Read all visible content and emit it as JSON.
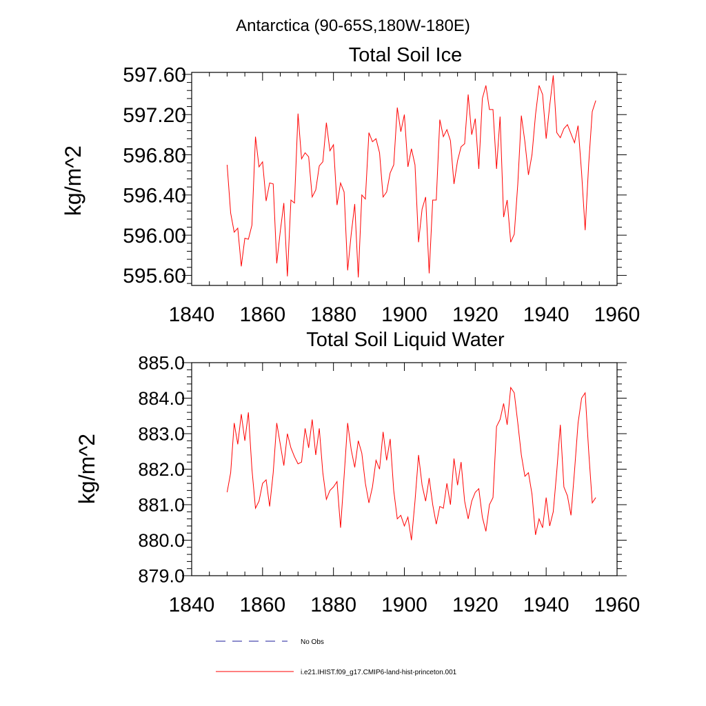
{
  "figure": {
    "title": "Antarctica (90-65S,180W-180E)"
  },
  "chart_data": [
    {
      "type": "line",
      "title": "Total Soil Ice",
      "xlabel": "",
      "ylabel": "kg/m^2",
      "xlim": [
        1840,
        1960
      ],
      "ylim": [
        595.5,
        597.62
      ],
      "xticks": [
        "1840",
        "1860",
        "1880",
        "1900",
        "1920",
        "1940",
        "1960"
      ],
      "yticks": [
        "595.60",
        "596.00",
        "596.40",
        "596.80",
        "597.20",
        "597.60"
      ],
      "grid": false,
      "series": [
        {
          "name": "i.e21.IHIST.f09_g17.CMIP6-land-hist-princeton.001",
          "color": "#ff0000",
          "x_start": 1850,
          "values": [
            596.7,
            596.22,
            596.03,
            596.07,
            595.69,
            595.97,
            595.96,
            596.1,
            596.98,
            596.68,
            596.73,
            596.34,
            596.52,
            596.51,
            595.72,
            596.04,
            596.32,
            595.59,
            596.35,
            596.32,
            597.21,
            596.76,
            596.82,
            596.78,
            596.38,
            596.45,
            596.69,
            596.73,
            597.12,
            596.84,
            596.9,
            596.3,
            596.52,
            596.43,
            595.65,
            596.01,
            596.31,
            595.58,
            596.4,
            596.36,
            597.02,
            596.93,
            596.96,
            596.82,
            596.38,
            596.43,
            596.62,
            596.7,
            597.27,
            597.03,
            597.2,
            596.68,
            596.86,
            596.7,
            595.93,
            596.26,
            596.38,
            595.62,
            596.35,
            596.35,
            597.15,
            596.98,
            597.05,
            596.94,
            596.51,
            596.74,
            596.88,
            596.91,
            597.4,
            597.0,
            597.16,
            596.66,
            597.36,
            597.49,
            597.25,
            597.25,
            596.66,
            597.18,
            596.18,
            596.35,
            595.93,
            596.01,
            596.51,
            597.19,
            596.93,
            596.6,
            596.8,
            597.2,
            597.49,
            597.4,
            596.96,
            597.29,
            597.59,
            597.02,
            596.97,
            597.06,
            597.1,
            597.01,
            596.92,
            597.09,
            596.62,
            596.05,
            596.71,
            597.23,
            597.34
          ]
        }
      ]
    },
    {
      "type": "line",
      "title": "Total Soil Liquid Water",
      "xlabel": "",
      "ylabel": "kg/m^2",
      "xlim": [
        1840,
        1960
      ],
      "ylim": [
        879.0,
        885.0
      ],
      "xticks": [
        "1840",
        "1860",
        "1880",
        "1900",
        "1920",
        "1940",
        "1960"
      ],
      "yticks": [
        "879.0",
        "880.0",
        "881.0",
        "882.0",
        "883.0",
        "884.0",
        "885.0"
      ],
      "grid": false,
      "series": [
        {
          "name": "i.e21.IHIST.f09_g17.CMIP6-land-hist-princeton.001",
          "color": "#ff0000",
          "x_start": 1850,
          "values": [
            881.35,
            881.9,
            883.3,
            882.7,
            883.55,
            882.8,
            883.6,
            882.0,
            880.9,
            881.1,
            881.6,
            881.7,
            880.95,
            881.9,
            883.3,
            882.7,
            882.1,
            883.0,
            882.6,
            882.35,
            882.15,
            882.2,
            883.15,
            882.6,
            883.4,
            882.4,
            883.15,
            881.9,
            881.15,
            881.4,
            881.5,
            881.65,
            880.35,
            881.8,
            883.3,
            882.55,
            882.05,
            882.8,
            882.45,
            881.6,
            881.05,
            881.5,
            882.25,
            882.0,
            883.05,
            882.25,
            882.85,
            881.4,
            880.6,
            880.7,
            880.4,
            880.65,
            880.0,
            881.1,
            882.4,
            881.55,
            881.1,
            881.75,
            881.0,
            880.45,
            880.95,
            880.9,
            881.6,
            881.0,
            882.3,
            881.55,
            882.2,
            881.1,
            880.6,
            881.1,
            881.35,
            881.45,
            880.65,
            880.25,
            881.0,
            881.2,
            883.2,
            883.4,
            883.85,
            883.25,
            884.3,
            884.15,
            883.3,
            882.4,
            881.8,
            881.9,
            881.3,
            880.15,
            880.6,
            880.35,
            881.2,
            880.4,
            880.8,
            881.95,
            883.25,
            881.5,
            881.25,
            880.7,
            881.95,
            883.3,
            884.0,
            884.15,
            882.5,
            881.05,
            881.2
          ]
        }
      ]
    }
  ],
  "legend": {
    "placement": "bottom",
    "items": [
      {
        "label": "No Obs",
        "style": "dashed",
        "color": "#1a1a9a"
      },
      {
        "label": "i.e21.IHIST.f09_g17.CMIP6-land-hist-princeton.001",
        "style": "solid",
        "color": "#ff0000"
      }
    ]
  }
}
